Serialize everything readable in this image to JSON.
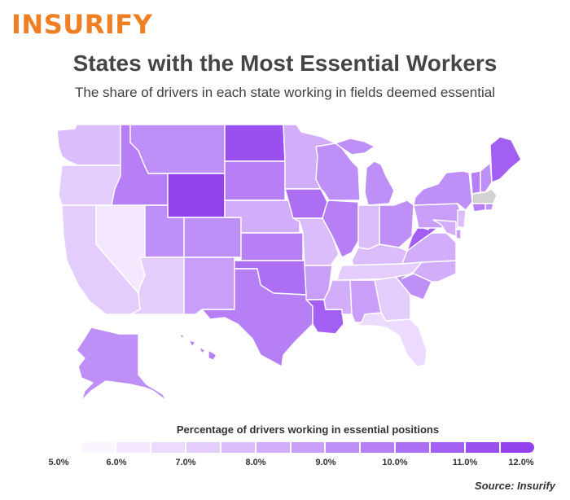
{
  "brand": {
    "logo_text": "INSURIFY",
    "colors": {
      "orange": "#f07e22",
      "text": "#454545"
    }
  },
  "header": {
    "title": "States with the Most Essential Workers",
    "subtitle": "The share of drivers in each state working in fields deemed essential"
  },
  "legend": {
    "title": "Percentage of drivers working in essential positions",
    "ticks": [
      "5.0%",
      "6.0%",
      "7.0%",
      "8.0%",
      "9.0%",
      "10.0%",
      "11.0%",
      "12.0%"
    ],
    "colors": [
      "#fbf5ff",
      "#f4e8ff",
      "#ecdbff",
      "#e4cdfd",
      "#dbbdfb",
      "#d2aefa",
      "#c89ef9",
      "#bf8ff8",
      "#b67ff6",
      "#ac6ff4",
      "#a35ff1",
      "#9a50ef",
      "#9241ec"
    ],
    "no_data_color": "#d2d2d2"
  },
  "source": {
    "text": "Source: Insurify"
  },
  "chart_data": {
    "type": "choropleth",
    "title": "States with the Most Essential Workers",
    "subtitle": "The share of drivers in each state working in fields deemed essential",
    "legend_title": "Percentage of drivers working in essential positions",
    "unit": "percent",
    "range": [
      5.0,
      12.0
    ],
    "values": {
      "WA": 7.5,
      "OR": 7.0,
      "CA": 6.5,
      "NV": 5.3,
      "ID": 9.8,
      "MT": 8.8,
      "WY": 11.9,
      "UT": 9.0,
      "AZ": 6.8,
      "CO": 8.9,
      "NM": 8.5,
      "ND": 11.6,
      "SD": 9.8,
      "NE": 8.0,
      "KS": 9.4,
      "OK": 10.2,
      "TX": 9.6,
      "MN": 8.2,
      "IA": 10.0,
      "MO": 7.6,
      "AR": 8.7,
      "LA": 10.6,
      "WI": 8.8,
      "IL": 9.6,
      "MI": 9.3,
      "IN": 7.2,
      "OH": 8.8,
      "KY": 7.4,
      "TN": 7.0,
      "MS": 8.2,
      "AL": 8.5,
      "GA": 7.0,
      "FL": 6.0,
      "SC": 8.9,
      "NC": 8.0,
      "VA": 8.2,
      "WV": 11.0,
      "PA": 8.6,
      "NY": 8.9,
      "ME": 10.6,
      "VT": 9.8,
      "NH": 9.0,
      "MA": null,
      "RI": 8.8,
      "CT": 9.7,
      "NJ": 7.3,
      "DE": 8.3,
      "MD": 7.8,
      "AK": 9.3,
      "HI": 9.7
    }
  }
}
